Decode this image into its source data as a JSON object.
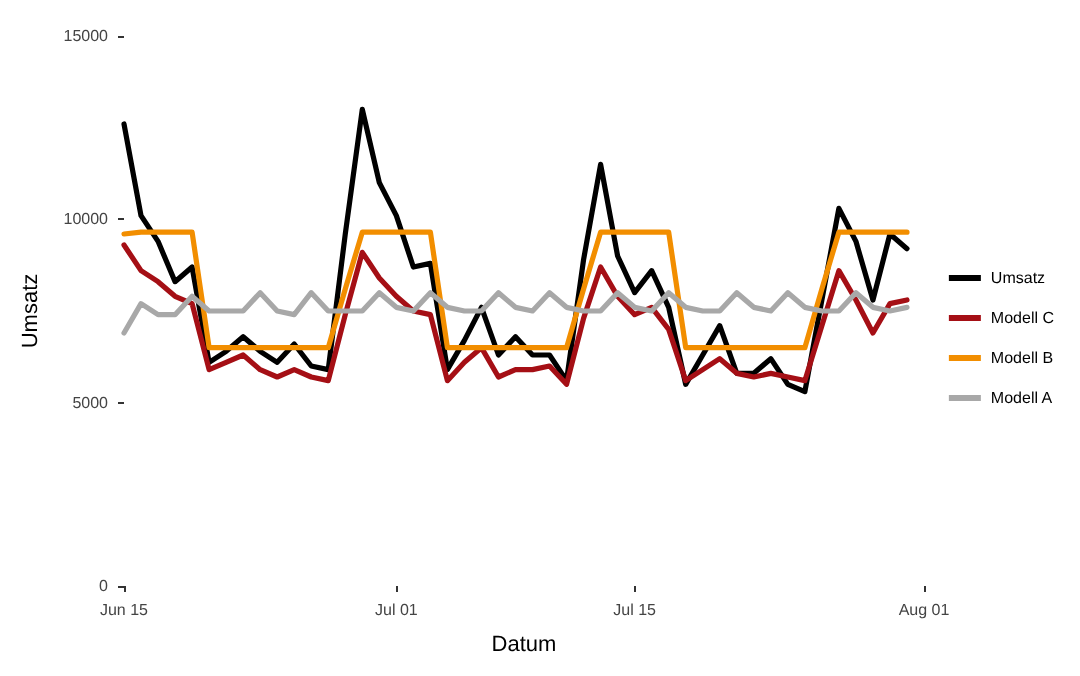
{
  "chart_data": {
    "type": "line",
    "xlabel": "Datum",
    "ylabel": "Umsatz",
    "x": [
      "--06-15",
      "--06-16",
      "--06-17",
      "--06-18",
      "--06-19",
      "--06-20",
      "--06-21",
      "--06-22",
      "--06-23",
      "--06-24",
      "--06-25",
      "--06-26",
      "--06-27",
      "--06-28",
      "--06-29",
      "--06-30",
      "--07-01",
      "--07-02",
      "--07-03",
      "--07-04",
      "--07-05",
      "--07-06",
      "--07-07",
      "--07-08",
      "--07-09",
      "--07-10",
      "--07-11",
      "--07-12",
      "--07-13",
      "--07-14",
      "--07-15",
      "--07-16",
      "--07-17",
      "--07-18",
      "--07-19",
      "--07-20",
      "--07-21",
      "--07-22",
      "--07-23",
      "--07-24",
      "--07-25",
      "--07-26",
      "--07-27",
      "--07-28",
      "--07-29",
      "--07-30",
      "--07-31"
    ],
    "series": [
      {
        "name": "Umsatz",
        "color": "#000000",
        "values": [
          12600,
          10100,
          9400,
          8300,
          8700,
          6100,
          6400,
          6800,
          6400,
          6100,
          6600,
          6000,
          5900,
          9600,
          13000,
          11000,
          10100,
          8700,
          8800,
          5900,
          6700,
          7600,
          6300,
          6800,
          6300,
          6300,
          5600,
          8900,
          11500,
          9000,
          8000,
          8600,
          7600,
          5500,
          6300,
          7100,
          5800,
          5800,
          6200,
          5500,
          5300,
          7800,
          10300,
          9400,
          7800,
          9600,
          9200
        ]
      },
      {
        "name": "Modell C",
        "color": "#a50f15",
        "values": [
          9300,
          8600,
          8300,
          7900,
          7700,
          5900,
          6100,
          6300,
          5900,
          5700,
          5900,
          5700,
          5600,
          7400,
          9100,
          8400,
          7900,
          7500,
          7400,
          5600,
          6100,
          6500,
          5700,
          5900,
          5900,
          6000,
          5500,
          7300,
          8700,
          7900,
          7400,
          7600,
          7000,
          5600,
          5900,
          6200,
          5800,
          5700,
          5800,
          5700,
          5600,
          7100,
          8600,
          7800,
          6900,
          7700,
          7800
        ]
      },
      {
        "name": "Modell B",
        "color": "#f28e00",
        "values": [
          9600,
          9650,
          9650,
          9650,
          9650,
          6500,
          6500,
          6500,
          6500,
          6500,
          6500,
          6500,
          6500,
          8100,
          9650,
          9650,
          9650,
          9650,
          9650,
          6500,
          6500,
          6500,
          6500,
          6500,
          6500,
          6500,
          6500,
          8100,
          9650,
          9650,
          9650,
          9650,
          9650,
          6500,
          6500,
          6500,
          6500,
          6500,
          6500,
          6500,
          6500,
          8100,
          9650,
          9650,
          9650,
          9650,
          9650
        ]
      },
      {
        "name": "Modell A",
        "color": "#a8a8a8",
        "values": [
          6900,
          7700,
          7400,
          7400,
          7900,
          7500,
          7500,
          7500,
          8000,
          7500,
          7400,
          8000,
          7500,
          7500,
          7500,
          8000,
          7600,
          7500,
          8000,
          7600,
          7500,
          7500,
          8000,
          7600,
          7500,
          8000,
          7600,
          7500,
          7500,
          8000,
          7600,
          7500,
          8000,
          7600,
          7500,
          7500,
          8000,
          7600,
          7500,
          8000,
          7600,
          7500,
          7500,
          8000,
          7600,
          7500,
          7600
        ]
      }
    ],
    "xlim": [
      "--06-15",
      "--08-01"
    ],
    "xticks": [
      {
        "value": "--06-15",
        "label": "Jun 15"
      },
      {
        "value": "--07-01",
        "label": "Jul 01"
      },
      {
        "value": "--07-15",
        "label": "Jul 15"
      },
      {
        "value": "--08-01",
        "label": "Aug 01"
      }
    ],
    "ylim": [
      0,
      15000
    ],
    "yticks": [
      0,
      5000,
      10000,
      15000
    ],
    "grid": false,
    "legend": "right",
    "marker": "none",
    "line_style": "solid"
  }
}
